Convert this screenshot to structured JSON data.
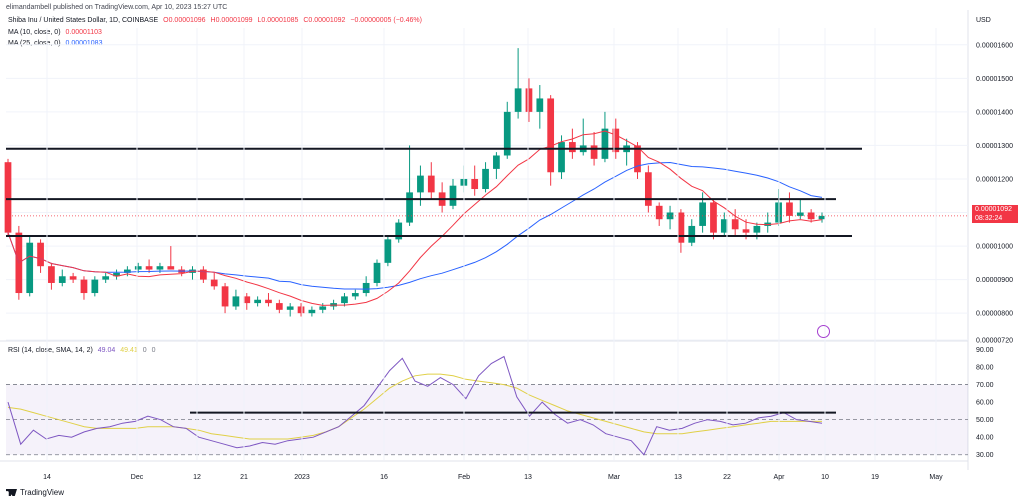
{
  "attribution": "elimandambell published on TradingView.com, Apr 10, 2023 15:27 UTC",
  "symbol_line": {
    "name": "Shiba Inu / United States Dollar, 1D, COINBASE",
    "open": "O0.00001096",
    "high": "H0.00001099",
    "low": "L0.00001085",
    "close": "C0.00001092",
    "change": "−0.00000005 (−0.46%)"
  },
  "ma10": {
    "label": "MA (10, close, 0)",
    "value": "0.00001103",
    "color": "#f23645"
  },
  "ma25": {
    "label": "MA (25, close, 0)",
    "value": "0.00001083",
    "color": "#2962ff"
  },
  "rsi_legend": {
    "label": "RSI (14, close, SMA, 14, 2)",
    "rsi": "49.04",
    "sma": "49.41",
    "v1": "0",
    "v2": "0"
  },
  "currency": "USD",
  "last_price": {
    "value": "0.00001092",
    "countdown": "08:32:24"
  },
  "footer": "TradingView",
  "icons": {
    "logo": "tradingview-logo-icon",
    "event": "sparkle-event-icon"
  },
  "colors": {
    "up": "#089981",
    "down": "#f23645",
    "ma10": "#f23645",
    "ma25": "#2962ff",
    "rsi": "#7e57c2",
    "rsi_sma": "#e0d047"
  },
  "chart_data": [
    {
      "type": "candlestick",
      "ylabel": "USD",
      "ylim": [
        7.2e-06,
        1.65e-05
      ],
      "y_ticks": [
        "0.00001600",
        "0.00001500",
        "0.00001400",
        "0.00001300",
        "0.00001200",
        "0.00001100",
        "0.00001000",
        "0.00000900",
        "0.00000800",
        "0.00000720"
      ],
      "x_ticks": [
        "14",
        "Dec",
        "12",
        "21",
        "2023",
        "16",
        "Feb",
        "13",
        "Mar",
        "13",
        "22",
        "Apr",
        "10",
        "19",
        "May"
      ],
      "grid": true,
      "ohlc_daily": [
        [
          1.25e-05,
          1.26e-05,
          1.03e-05,
          1.04e-05
        ],
        [
          1.04e-05,
          1.06e-05,
          8.4e-06,
          8.6e-06
        ],
        [
          8.6e-06,
          1.03e-05,
          8.5e-06,
          1.01e-05
        ],
        [
          1.01e-05,
          1.02e-05,
          9.2e-06,
          9.4e-06
        ],
        [
          9.4e-06,
          9.5e-06,
          8.7e-06,
          8.9e-06
        ],
        [
          8.9e-06,
          9.3e-06,
          8.8e-06,
          9.1e-06
        ],
        [
          9.1e-06,
          9.2e-06,
          8.9e-06,
          9e-06
        ],
        [
          9e-06,
          9.1e-06,
          8.4e-06,
          8.6e-06
        ],
        [
          8.6e-06,
          9.1e-06,
          8.5e-06,
          9e-06
        ],
        [
          9e-06,
          9.2e-06,
          8.9e-06,
          9.1e-06
        ],
        [
          9.1e-06,
          9.3e-06,
          9e-06,
          9.2e-06
        ],
        [
          9.2e-06,
          9.4e-06,
          9.1e-06,
          9.3e-06
        ],
        [
          9.3e-06,
          9.5e-06,
          9.2e-06,
          9.4e-06
        ],
        [
          9.4e-06,
          9.6e-06,
          9.2e-06,
          9.3e-06
        ],
        [
          9.3e-06,
          9.5e-06,
          9.2e-06,
          9.4e-06
        ],
        [
          9.4e-06,
          1e-05,
          9.3e-06,
          9.3e-06
        ],
        [
          9.3e-06,
          9.4e-06,
          9.1e-06,
          9.2e-06
        ],
        [
          9.2e-06,
          9.4e-06,
          9e-06,
          9.3e-06
        ],
        [
          9.3e-06,
          9.4e-06,
          8.9e-06,
          9e-06
        ],
        [
          9e-06,
          9.2e-06,
          8.7e-06,
          8.8e-06
        ],
        [
          8.8e-06,
          8.9e-06,
          8e-06,
          8.2e-06
        ],
        [
          8.2e-06,
          8.7e-06,
          8.1e-06,
          8.5e-06
        ],
        [
          8.5e-06,
          8.6e-06,
          8.1e-06,
          8.3e-06
        ],
        [
          8.3e-06,
          8.5e-06,
          8.2e-06,
          8.4e-06
        ],
        [
          8.4e-06,
          8.6e-06,
          8.2e-06,
          8.3e-06
        ],
        [
          8.3e-06,
          8.4e-06,
          8e-06,
          8.1e-06
        ],
        [
          8.1e-06,
          8.3e-06,
          7.9e-06,
          8.2e-06
        ],
        [
          8.2e-06,
          8.3e-06,
          7.9e-06,
          8e-06
        ],
        [
          8e-06,
          8.2e-06,
          7.9e-06,
          8.1e-06
        ],
        [
          8.1e-06,
          8.3e-06,
          8e-06,
          8.2e-06
        ],
        [
          8.2e-06,
          8.4e-06,
          8.1e-06,
          8.3e-06
        ],
        [
          8.3e-06,
          8.6e-06,
          8.2e-06,
          8.5e-06
        ],
        [
          8.5e-06,
          8.7e-06,
          8.4e-06,
          8.6e-06
        ],
        [
          8.6e-06,
          9.1e-06,
          8.5e-06,
          8.9e-06
        ],
        [
          8.9e-06,
          9.6e-06,
          8.8e-06,
          9.5e-06
        ],
        [
          9.5e-06,
          1.03e-05,
          9.4e-06,
          1.02e-05
        ],
        [
          1.02e-05,
          1.08e-05,
          1.01e-05,
          1.07e-05
        ],
        [
          1.07e-05,
          1.3e-05,
          1.06e-05,
          1.16e-05
        ],
        [
          1.16e-05,
          1.24e-05,
          1.12e-05,
          1.21e-05
        ],
        [
          1.21e-05,
          1.25e-05,
          1.14e-05,
          1.16e-05
        ],
        [
          1.16e-05,
          1.19e-05,
          1.1e-05,
          1.12e-05
        ],
        [
          1.12e-05,
          1.2e-05,
          1.11e-05,
          1.18e-05
        ],
        [
          1.18e-05,
          1.24e-05,
          1.16e-05,
          1.2e-05
        ],
        [
          1.2e-05,
          1.24e-05,
          1.15e-05,
          1.17e-05
        ],
        [
          1.17e-05,
          1.25e-05,
          1.16e-05,
          1.23e-05
        ],
        [
          1.23e-05,
          1.28e-05,
          1.2e-05,
          1.27e-05
        ],
        [
          1.27e-05,
          1.43e-05,
          1.26e-05,
          1.4e-05
        ],
        [
          1.4e-05,
          1.59e-05,
          1.38e-05,
          1.47e-05
        ],
        [
          1.47e-05,
          1.5e-05,
          1.37e-05,
          1.4e-05
        ],
        [
          1.4e-05,
          1.48e-05,
          1.35e-05,
          1.44e-05
        ],
        [
          1.44e-05,
          1.45e-05,
          1.18e-05,
          1.22e-05
        ],
        [
          1.22e-05,
          1.33e-05,
          1.2e-05,
          1.31e-05
        ],
        [
          1.31e-05,
          1.35e-05,
          1.26e-05,
          1.28e-05
        ],
        [
          1.28e-05,
          1.38e-05,
          1.27e-05,
          1.3e-05
        ],
        [
          1.3e-05,
          1.34e-05,
          1.24e-05,
          1.26e-05
        ],
        [
          1.26e-05,
          1.4e-05,
          1.25e-05,
          1.35e-05
        ],
        [
          1.35e-05,
          1.38e-05,
          1.26e-05,
          1.28e-05
        ],
        [
          1.28e-05,
          1.32e-05,
          1.24e-05,
          1.3e-05
        ],
        [
          1.3e-05,
          1.31e-05,
          1.2e-05,
          1.22e-05
        ],
        [
          1.22e-05,
          1.24e-05,
          1.1e-05,
          1.12e-05
        ],
        [
          1.12e-05,
          1.13e-05,
          1.06e-05,
          1.08e-05
        ],
        [
          1.08e-05,
          1.12e-05,
          1.05e-05,
          1.1e-05
        ],
        [
          1.1e-05,
          1.11e-05,
          9.8e-06,
          1.01e-05
        ],
        [
          1.01e-05,
          1.08e-05,
          1e-05,
          1.06e-05
        ],
        [
          1.06e-05,
          1.16e-05,
          1.04e-05,
          1.13e-05
        ],
        [
          1.13e-05,
          1.14e-05,
          1.02e-05,
          1.04e-05
        ],
        [
          1.04e-05,
          1.1e-05,
          1.03e-05,
          1.08e-05
        ],
        [
          1.08e-05,
          1.11e-05,
          1.03e-05,
          1.05e-05
        ],
        [
          1.05e-05,
          1.08e-05,
          1.02e-05,
          1.04e-05
        ],
        [
          1.04e-05,
          1.07e-05,
          1.02e-05,
          1.06e-05
        ],
        [
          1.06e-05,
          1.1e-05,
          1.04e-05,
          1.07e-05
        ],
        [
          1.07e-05,
          1.17e-05,
          1.06e-05,
          1.13e-05
        ],
        [
          1.13e-05,
          1.16e-05,
          1.07e-05,
          1.09e-05
        ],
        [
          1.09e-05,
          1.14e-05,
          1.08e-05,
          1.1e-05
        ],
        [
          1.1e-05,
          1.11e-05,
          1.07e-05,
          1.08e-05
        ],
        [
          1.08e-05,
          1.1e-05,
          1.07e-05,
          1.09e-05
        ]
      ],
      "horizontal_levels": [
        1.29e-05,
        1.14e-05,
        1.03e-05
      ],
      "ma10_values": "see series",
      "series": [
        {
          "name": "MA (10, close, 0)"
        },
        {
          "name": "MA (25, close, 0)"
        }
      ]
    },
    {
      "type": "line",
      "ylabel": "RSI",
      "ylim": [
        27,
        92
      ],
      "y_ticks": [
        "90.00",
        "80.00",
        "70.00",
        "60.00",
        "50.00",
        "40.00",
        "30.00"
      ],
      "band": [
        30,
        70
      ],
      "horizontal_level": 54,
      "series": [
        {
          "name": "RSI",
          "values": [
            60,
            36,
            44,
            39,
            41,
            40,
            43,
            45,
            46,
            48,
            49,
            52,
            50,
            46,
            45,
            40,
            38,
            36,
            34,
            35,
            37,
            36,
            38,
            39,
            40,
            43,
            46,
            52,
            58,
            68,
            78,
            85,
            72,
            69,
            74,
            70,
            62,
            75,
            82,
            86,
            63,
            52,
            60,
            53,
            48,
            50,
            47,
            42,
            40,
            38,
            30,
            46,
            44,
            45,
            48,
            50,
            49,
            47,
            48,
            51,
            52,
            54,
            50,
            49,
            48
          ]
        },
        {
          "name": "RSI-based MA",
          "values": [
            57,
            56,
            54,
            52,
            50,
            48,
            46,
            45,
            45,
            45,
            45,
            46,
            46,
            46,
            45,
            44,
            42,
            41,
            40,
            39,
            39,
            39,
            39,
            40,
            41,
            43,
            46,
            51,
            56,
            62,
            68,
            72,
            75,
            76,
            76,
            75,
            73,
            72,
            71,
            70,
            68,
            64,
            61,
            58,
            55,
            53,
            51,
            49,
            47,
            45,
            43,
            42,
            42,
            42,
            43,
            44,
            45,
            46,
            47,
            48,
            49,
            49,
            49,
            49,
            49
          ]
        }
      ]
    }
  ]
}
